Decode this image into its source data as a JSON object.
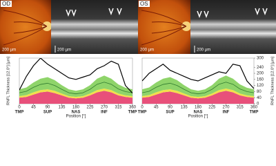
{
  "panels": [
    {
      "eye": "OD",
      "fundus_scale": "200 µm",
      "oct_scale": "200 µm"
    },
    {
      "eye": "OS",
      "fundus_scale": "200 µm",
      "oct_scale": "200 µm"
    }
  ],
  "chart_data": [
    {
      "type": "area",
      "ylabel": "RNFL Thickness [12.0°] [µm]",
      "xlabel": "Position [°]",
      "y_axis_side": "left",
      "x": [
        0,
        22.5,
        45,
        67.5,
        90,
        112.5,
        135,
        157.5,
        180,
        202.5,
        225,
        247.5,
        270,
        292.5,
        315,
        337.5,
        360
      ],
      "xlim": [
        0,
        360
      ],
      "xticks": [
        0,
        45,
        90,
        135,
        180,
        225,
        270,
        315,
        360
      ],
      "ylim": [
        0,
        300
      ],
      "regions": [
        {
          "x": 0,
          "label": "TMP"
        },
        {
          "x": 90,
          "label": "SUP"
        },
        {
          "x": 180,
          "label": "NAS"
        },
        {
          "x": 270,
          "label": "INF"
        },
        {
          "x": 360,
          "label": "TMP"
        }
      ],
      "bands": [
        {
          "color": "#e8507a",
          "values": [
            40,
            45,
            60,
            75,
            80,
            70,
            55,
            40,
            35,
            40,
            55,
            75,
            85,
            75,
            55,
            45,
            40
          ]
        },
        {
          "color": "#f2e04a",
          "values": [
            10,
            12,
            15,
            15,
            15,
            15,
            12,
            10,
            10,
            10,
            12,
            15,
            15,
            15,
            12,
            10,
            10
          ]
        },
        {
          "color": "#8fd46a",
          "values": [
            45,
            50,
            65,
            75,
            80,
            70,
            55,
            45,
            40,
            45,
            55,
            75,
            85,
            75,
            60,
            50,
            45
          ]
        }
      ],
      "series": [
        {
          "color": "#2f7a2f",
          "values": [
            72,
            82,
            108,
            127,
            135,
            120,
            95,
            72,
            65,
            72,
            95,
            128,
            142,
            128,
            97,
            80,
            72
          ]
        },
        {
          "color": "#000000",
          "values": [
            90,
            180,
            250,
            300,
            260,
            230,
            200,
            170,
            160,
            175,
            190,
            230,
            250,
            280,
            260,
            120,
            70
          ]
        }
      ]
    },
    {
      "type": "area",
      "ylabel": "RNFL Thickness [12.0°] [µm]",
      "xlabel": "Position [°]",
      "y_axis_side": "right",
      "x": [
        0,
        22.5,
        45,
        67.5,
        90,
        112.5,
        135,
        157.5,
        180,
        202.5,
        225,
        247.5,
        270,
        292.5,
        315,
        337.5,
        360
      ],
      "xlim": [
        0,
        360
      ],
      "xticks": [
        0,
        45,
        90,
        135,
        180,
        225,
        270,
        315,
        360
      ],
      "ylim": [
        0,
        300
      ],
      "yticks": [
        0,
        40,
        80,
        120,
        160,
        200,
        240,
        300
      ],
      "regions": [
        {
          "x": 0,
          "label": "TMP"
        },
        {
          "x": 90,
          "label": "SUP"
        },
        {
          "x": 180,
          "label": "NAS"
        },
        {
          "x": 270,
          "label": "INF"
        },
        {
          "x": 360,
          "label": "TMP"
        }
      ],
      "bands": [
        {
          "color": "#e8507a",
          "values": [
            40,
            45,
            60,
            75,
            80,
            70,
            55,
            40,
            35,
            40,
            55,
            75,
            85,
            75,
            55,
            45,
            40
          ]
        },
        {
          "color": "#f2e04a",
          "values": [
            10,
            12,
            15,
            15,
            15,
            15,
            12,
            10,
            10,
            10,
            12,
            15,
            15,
            15,
            12,
            10,
            10
          ]
        },
        {
          "color": "#8fd46a",
          "values": [
            45,
            50,
            65,
            75,
            80,
            70,
            55,
            45,
            40,
            45,
            55,
            75,
            85,
            75,
            60,
            50,
            45
          ]
        }
      ],
      "series": [
        {
          "color": "#2f7a2f",
          "values": [
            72,
            82,
            108,
            127,
            135,
            120,
            95,
            72,
            65,
            72,
            95,
            128,
            142,
            128,
            97,
            80,
            72
          ]
        },
        {
          "color": "#000000",
          "values": [
            150,
            200,
            230,
            260,
            220,
            200,
            180,
            160,
            150,
            170,
            190,
            210,
            200,
            260,
            250,
            150,
            100
          ]
        }
      ]
    }
  ]
}
